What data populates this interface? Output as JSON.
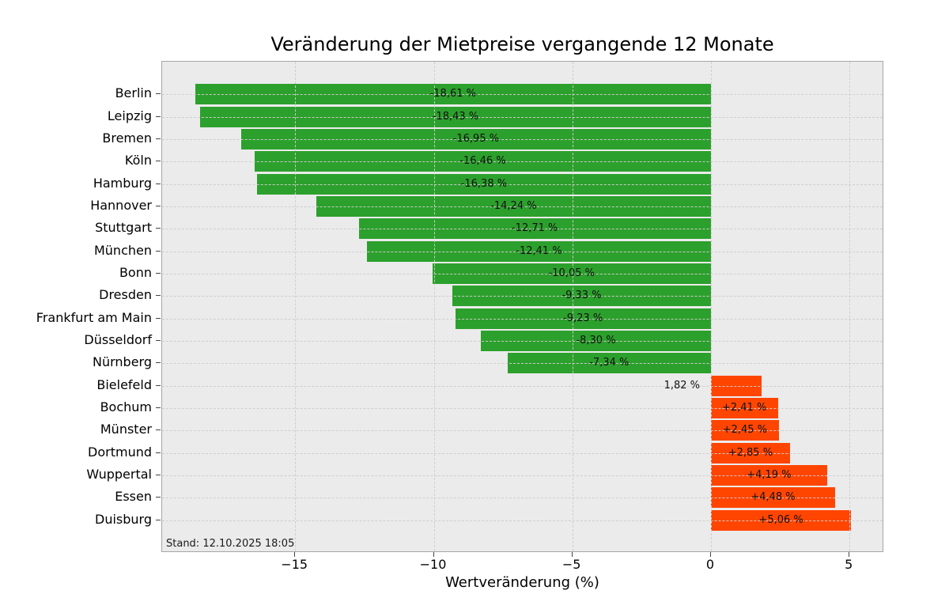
{
  "chart_data": {
    "type": "bar",
    "orientation": "horizontal",
    "title": "Veränderung der Mietpreise vergangende 12 Monate",
    "xlabel": "Wertveränderung (%)",
    "annotation": "Stand: 12.10.2025 18:05",
    "xlim": [
      -19.8,
      6.25
    ],
    "xticks": [
      -15,
      -10,
      -5,
      0,
      5
    ],
    "xtick_labels": [
      "−15",
      "−10",
      "−5",
      "0",
      "5"
    ],
    "grid": true,
    "grid_style": "dashed",
    "plot_background_color": "#ebebeb",
    "negative_color": "#2ca02c",
    "positive_color": "#ff4500",
    "categories": [
      "Berlin",
      "Leipzig",
      "Bremen",
      "Köln",
      "Hamburg",
      "Hannover",
      "Stuttgart",
      "München",
      "Bonn",
      "Dresden",
      "Frankfurt am Main",
      "Düsseldorf",
      "Nürnberg",
      "Bielefeld",
      "Bochum",
      "Münster",
      "Dortmund",
      "Wuppertal",
      "Essen",
      "Duisburg"
    ],
    "values": [
      -18.61,
      -18.43,
      -16.95,
      -16.46,
      -16.38,
      -14.24,
      -12.71,
      -12.41,
      -10.05,
      -9.33,
      -9.23,
      -8.3,
      -7.34,
      1.82,
      2.41,
      2.45,
      2.85,
      4.19,
      4.48,
      5.06
    ],
    "items": [
      {
        "city": "Berlin",
        "value": -18.61,
        "label": "-18,61 %",
        "label_position": "inside-center"
      },
      {
        "city": "Leipzig",
        "value": -18.43,
        "label": "-18,43 %",
        "label_position": "inside-center"
      },
      {
        "city": "Bremen",
        "value": -16.95,
        "label": "-16,95 %",
        "label_position": "inside-center"
      },
      {
        "city": "Köln",
        "value": -16.46,
        "label": "-16,46 %",
        "label_position": "inside-center"
      },
      {
        "city": "Hamburg",
        "value": -16.38,
        "label": "-16,38 %",
        "label_position": "inside-center"
      },
      {
        "city": "Hannover",
        "value": -14.24,
        "label": "-14,24 %",
        "label_position": "inside-center"
      },
      {
        "city": "Stuttgart",
        "value": -12.71,
        "label": "-12,71 %",
        "label_position": "inside-center"
      },
      {
        "city": "München",
        "value": -12.41,
        "label": "-12,41 %",
        "label_position": "inside-center"
      },
      {
        "city": "Bonn",
        "value": -10.05,
        "label": "-10,05 %",
        "label_position": "inside-center"
      },
      {
        "city": "Dresden",
        "value": -9.33,
        "label": "-9,33 %",
        "label_position": "inside-center"
      },
      {
        "city": "Frankfurt am Main",
        "value": -9.23,
        "label": "-9,23 %",
        "label_position": "inside-center"
      },
      {
        "city": "Düsseldorf",
        "value": -8.3,
        "label": "-8,30 %",
        "label_position": "inside-center"
      },
      {
        "city": "Nürnberg",
        "value": -7.34,
        "label": "-7,34 %",
        "label_position": "inside-center"
      },
      {
        "city": "Bielefeld",
        "value": 1.82,
        "label": "1,82 %",
        "label_position": "outside-left"
      },
      {
        "city": "Bochum",
        "value": 2.41,
        "label": "+2,41 %",
        "label_position": "inside-center"
      },
      {
        "city": "Münster",
        "value": 2.45,
        "label": "+2,45 %",
        "label_position": "inside-center"
      },
      {
        "city": "Dortmund",
        "value": 2.85,
        "label": "+2,85 %",
        "label_position": "inside-center"
      },
      {
        "city": "Wuppertal",
        "value": 4.19,
        "label": "+4,19 %",
        "label_position": "inside-center"
      },
      {
        "city": "Essen",
        "value": 4.48,
        "label": "+4,48 %",
        "label_position": "inside-center"
      },
      {
        "city": "Duisburg",
        "value": 5.06,
        "label": "+5,06 %",
        "label_position": "inside-center"
      }
    ]
  }
}
